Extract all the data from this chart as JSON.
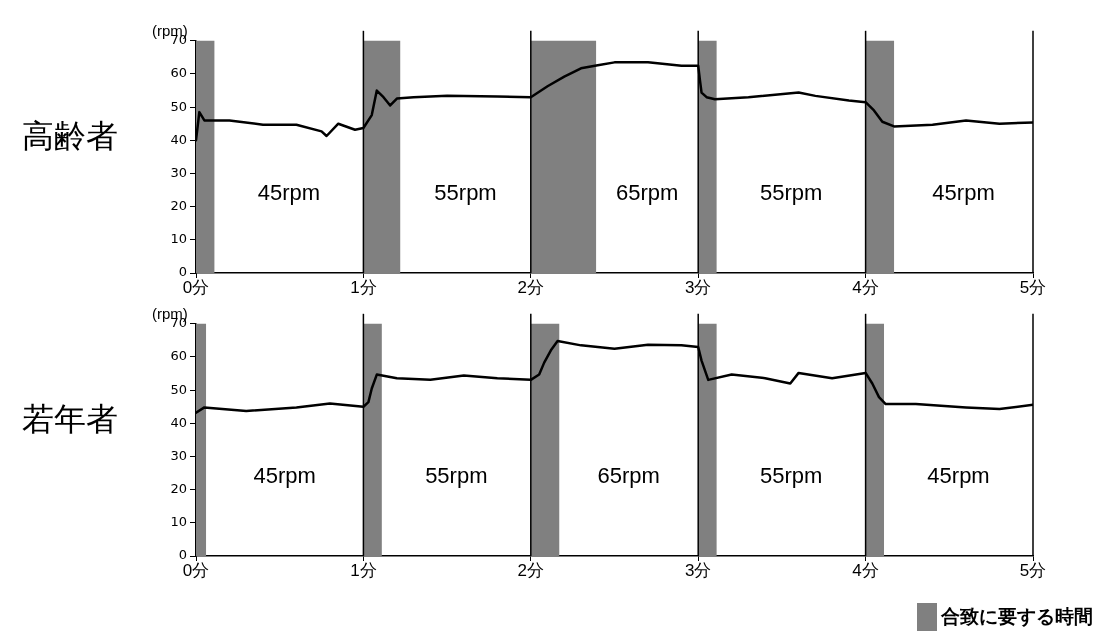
{
  "chart_data": [
    {
      "type": "line",
      "title": "高齢者",
      "ylabel": "(rpm)",
      "xlim": [
        0,
        5
      ],
      "ylim": [
        0,
        70
      ],
      "xticks": [
        {
          "value": 0,
          "label": "0分"
        },
        {
          "value": 1,
          "label": "1分"
        },
        {
          "value": 2,
          "label": "2分"
        },
        {
          "value": 3,
          "label": "3分"
        },
        {
          "value": 4,
          "label": "4分"
        },
        {
          "value": 5,
          "label": "5分"
        }
      ],
      "yticks": [
        0,
        10,
        20,
        30,
        40,
        50,
        60,
        70
      ],
      "grid": false,
      "marker": "none",
      "line_style": "solid",
      "series": [
        {
          "color": "#000000",
          "x": [
            0,
            0.02,
            0.05,
            0.1,
            0.2,
            0.4,
            0.6,
            0.75,
            0.78,
            0.85,
            0.95,
            1.0,
            1.05,
            1.08,
            1.12,
            1.16,
            1.2,
            1.3,
            1.5,
            1.8,
            2.0,
            2.1,
            2.2,
            2.3,
            2.4,
            2.5,
            2.7,
            2.9,
            3.0,
            3.01,
            3.02,
            3.05,
            3.1,
            3.3,
            3.6,
            3.7,
            3.9,
            4.0,
            4.05,
            4.1,
            4.17,
            4.4,
            4.6,
            4.8,
            5.0
          ],
          "values": [
            40,
            48.5,
            46,
            46,
            46,
            44.7,
            44.7,
            42.7,
            41.3,
            45,
            43.2,
            43.7,
            47.6,
            55,
            53,
            50.5,
            52.6,
            53,
            53.4,
            53.2,
            53,
            56.3,
            59.2,
            61.7,
            62.6,
            63.5,
            63.5,
            62.5,
            62.5,
            58.3,
            54.4,
            53,
            52.4,
            53,
            54.4,
            53.4,
            52,
            51.5,
            49,
            45.6,
            44.2,
            44.7,
            46,
            45,
            45.4
          ]
        }
      ],
      "bands": [
        {
          "axis": "x",
          "from": 0,
          "to": 0.11,
          "color": "#808080"
        },
        {
          "axis": "x",
          "from": 1,
          "to": 1.22,
          "color": "#808080"
        },
        {
          "axis": "x",
          "from": 2,
          "to": 2.39,
          "color": "#808080"
        },
        {
          "axis": "x",
          "from": 3,
          "to": 3.11,
          "color": "#808080"
        },
        {
          "axis": "x",
          "from": 4,
          "to": 4.17,
          "color": "#808080"
        }
      ],
      "ref_lines": [
        {
          "axis": "x",
          "value": 1,
          "color": "#000000"
        },
        {
          "axis": "x",
          "value": 2,
          "color": "#000000"
        },
        {
          "axis": "x",
          "value": 3,
          "color": "#000000"
        },
        {
          "axis": "x",
          "value": 4,
          "color": "#000000"
        }
      ],
      "annotations": [
        "45rpm",
        "55rpm",
        "65rpm",
        "55rpm",
        "45rpm"
      ]
    },
    {
      "type": "line",
      "title": "若年者",
      "ylabel": "(rpm)",
      "xlim": [
        0,
        5
      ],
      "ylim": [
        0,
        70
      ],
      "xticks": [
        {
          "value": 0,
          "label": "0分"
        },
        {
          "value": 1,
          "label": "1分"
        },
        {
          "value": 2,
          "label": "2分"
        },
        {
          "value": 3,
          "label": "3分"
        },
        {
          "value": 4,
          "label": "4分"
        },
        {
          "value": 5,
          "label": "5分"
        }
      ],
      "yticks": [
        0,
        10,
        20,
        30,
        40,
        50,
        60,
        70
      ],
      "grid": false,
      "marker": "none",
      "line_style": "solid",
      "legend": "bottom right",
      "series": [
        {
          "color": "#000000",
          "x": [
            0,
            0.05,
            0.3,
            0.6,
            0.8,
            1.0,
            1.03,
            1.05,
            1.08,
            1.2,
            1.4,
            1.6,
            1.8,
            2.0,
            2.05,
            2.08,
            2.12,
            2.16,
            2.3,
            2.5,
            2.7,
            2.9,
            3.0,
            3.02,
            3.06,
            3.2,
            3.4,
            3.55,
            3.6,
            3.8,
            4.0,
            4.04,
            4.08,
            4.12,
            4.3,
            4.6,
            4.8,
            5.0
          ],
          "values": [
            43.2,
            44.8,
            43.7,
            44.8,
            46,
            45,
            46.4,
            50.5,
            54.7,
            53.6,
            53.1,
            54.4,
            53.6,
            53.1,
            54.7,
            58.3,
            62,
            64.8,
            63.5,
            62.5,
            63.7,
            63.5,
            63,
            58.9,
            53.1,
            54.7,
            53.6,
            52,
            55.2,
            53.6,
            55.2,
            52,
            47.9,
            45.8,
            45.8,
            44.8,
            44.3,
            45.6
          ]
        }
      ],
      "bands": [
        {
          "axis": "x",
          "from": 0,
          "to": 0.06,
          "color": "#808080",
          "label": "合致に要する時間"
        },
        {
          "axis": "x",
          "from": 1,
          "to": 1.11,
          "color": "#808080"
        },
        {
          "axis": "x",
          "from": 2,
          "to": 2.17,
          "color": "#808080"
        },
        {
          "axis": "x",
          "from": 3,
          "to": 3.11,
          "color": "#808080"
        },
        {
          "axis": "x",
          "from": 4,
          "to": 4.11,
          "color": "#808080"
        }
      ],
      "ref_lines": [
        {
          "axis": "x",
          "value": 1,
          "color": "#000000"
        },
        {
          "axis": "x",
          "value": 2,
          "color": "#000000"
        },
        {
          "axis": "x",
          "value": 3,
          "color": "#000000"
        },
        {
          "axis": "x",
          "value": 4,
          "color": "#000000"
        }
      ],
      "annotations": [
        "45rpm",
        "55rpm",
        "65rpm",
        "55rpm",
        "45rpm"
      ]
    }
  ]
}
